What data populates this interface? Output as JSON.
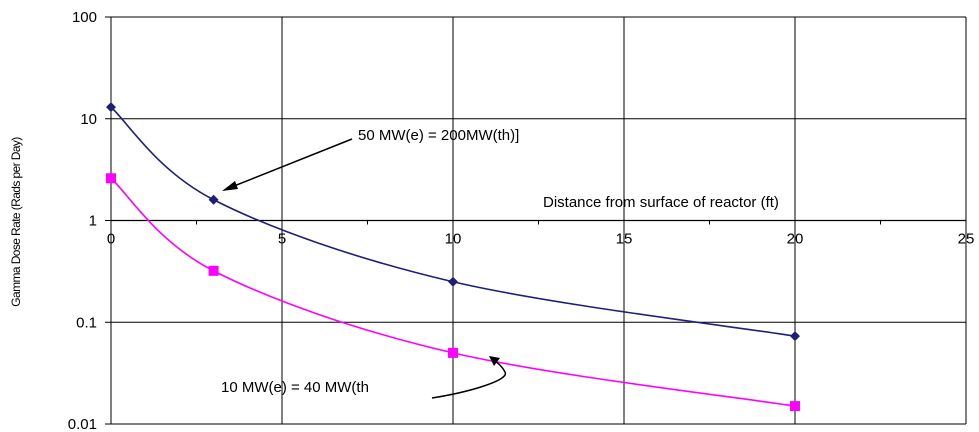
{
  "chart_data": {
    "type": "line",
    "title": "",
    "xlabel": "Distance from surface of reactor (ft)",
    "ylabel": "Gamma Dose Rate (Rads per Day)",
    "x_axis_crosses_y_at": 1,
    "xlim": [
      0,
      25
    ],
    "ylim": [
      0.01,
      100
    ],
    "yscale": "log",
    "grid": true,
    "x_ticks": [
      0,
      5,
      10,
      15,
      20,
      25
    ],
    "x_tick_labels": [
      "0",
      "5",
      "10",
      "15",
      "20",
      "25"
    ],
    "y_ticks": [
      0.01,
      0.1,
      1,
      10,
      100
    ],
    "y_tick_labels": [
      "0.01",
      "0.1",
      "1",
      "10",
      "100"
    ],
    "legend": "none",
    "series": [
      {
        "color": "#1f1f7a",
        "marker": "diamond",
        "smooth": true,
        "x": [
          0,
          3,
          10,
          20
        ],
        "y": [
          13,
          1.6,
          0.25,
          0.073
        ]
      },
      {
        "color": "#ff00ff",
        "marker": "square",
        "smooth": true,
        "x": [
          0,
          3,
          10,
          20
        ],
        "y": [
          2.6,
          0.32,
          0.05,
          0.015
        ]
      }
    ],
    "annotations": [
      {
        "text": "50 MW(e) = 200MW(th)]",
        "target_series": 0,
        "target_x": 3,
        "target_y": 1.6
      },
      {
        "text": "10 MW(e) = 40 MW(th",
        "target_series": 1,
        "target_x": 10,
        "target_y": 0.05
      }
    ]
  }
}
